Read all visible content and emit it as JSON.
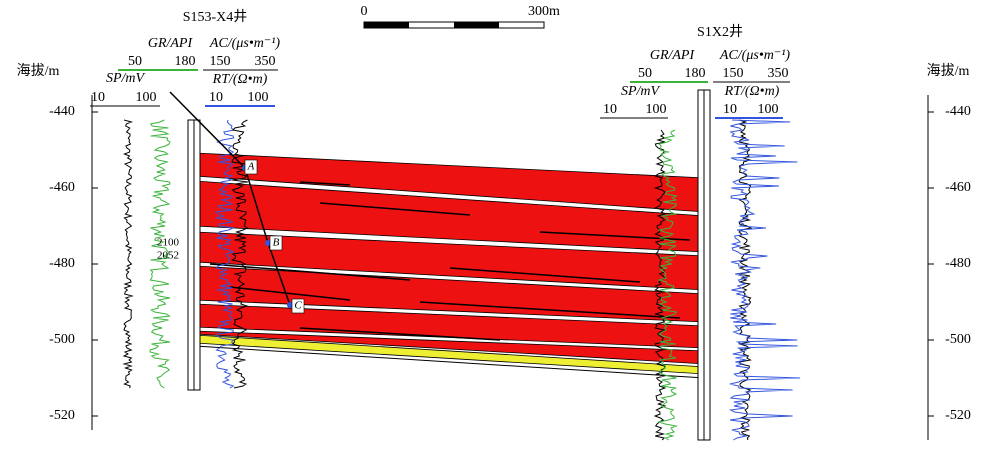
{
  "scale_bar": {
    "start": "0",
    "end": "300m"
  },
  "wells": [
    {
      "name": "S153-X4井",
      "gr_label": "GR/API",
      "gr_min": "50",
      "gr_max": "180",
      "ac_label": "AC/(μs•m⁻¹)",
      "ac_min": "150",
      "ac_max": "350",
      "sp_label": "SP/mV",
      "sp_min": "10",
      "sp_max": "100",
      "rt_label": "RT/(Ω•m)",
      "rt_min": "10",
      "rt_max": "100"
    },
    {
      "name": "S1X2井",
      "gr_label": "GR/API",
      "gr_min": "50",
      "gr_max": "180",
      "ac_label": "AC/(μs•m⁻¹)",
      "ac_min": "150",
      "ac_max": "350",
      "sp_label": "SP/mV",
      "sp_min": "10",
      "sp_max": "100",
      "rt_label": "RT/(Ω•m)",
      "rt_min": "10",
      "rt_max": "100"
    }
  ],
  "depth_axis": {
    "label": "海拔/m",
    "ticks": [
      -440,
      -460,
      -480,
      -500,
      -520
    ]
  },
  "depth_marks": [
    "2100",
    "2052"
  ],
  "points": [
    "A",
    "B",
    "C"
  ]
}
